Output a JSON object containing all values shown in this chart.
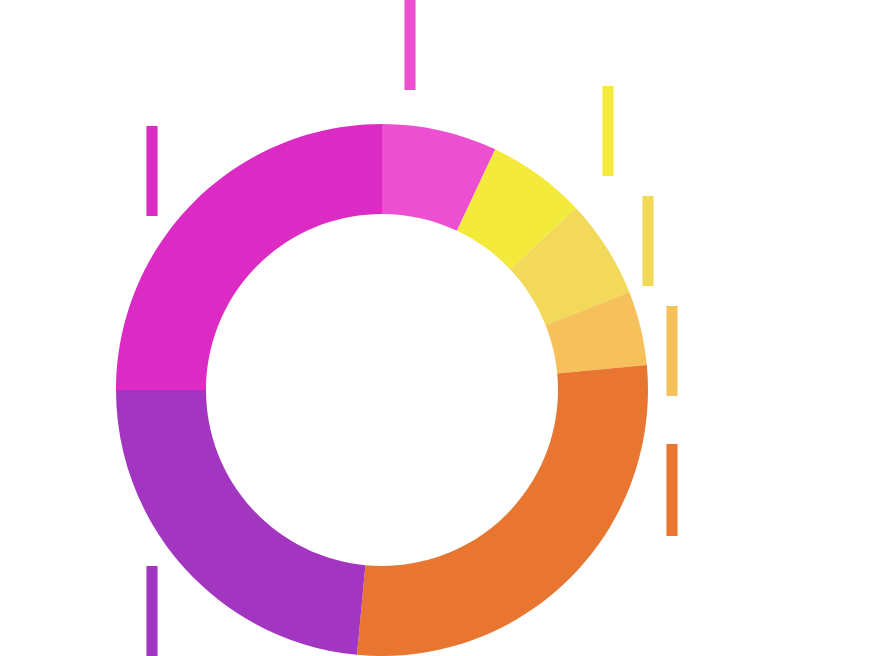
{
  "chart_data": {
    "type": "donut",
    "categories": [
      null,
      null,
      null,
      null,
      null,
      null,
      null
    ],
    "values": [
      7,
      6,
      6,
      4.5,
      28,
      23.5,
      25
    ],
    "colors": [
      "#ec50d0",
      "#f3ea3c",
      "#f3d95a",
      "#f6c05a",
      "#e87530",
      "#a336c0",
      "#dc2ac4"
    ]
  }
}
